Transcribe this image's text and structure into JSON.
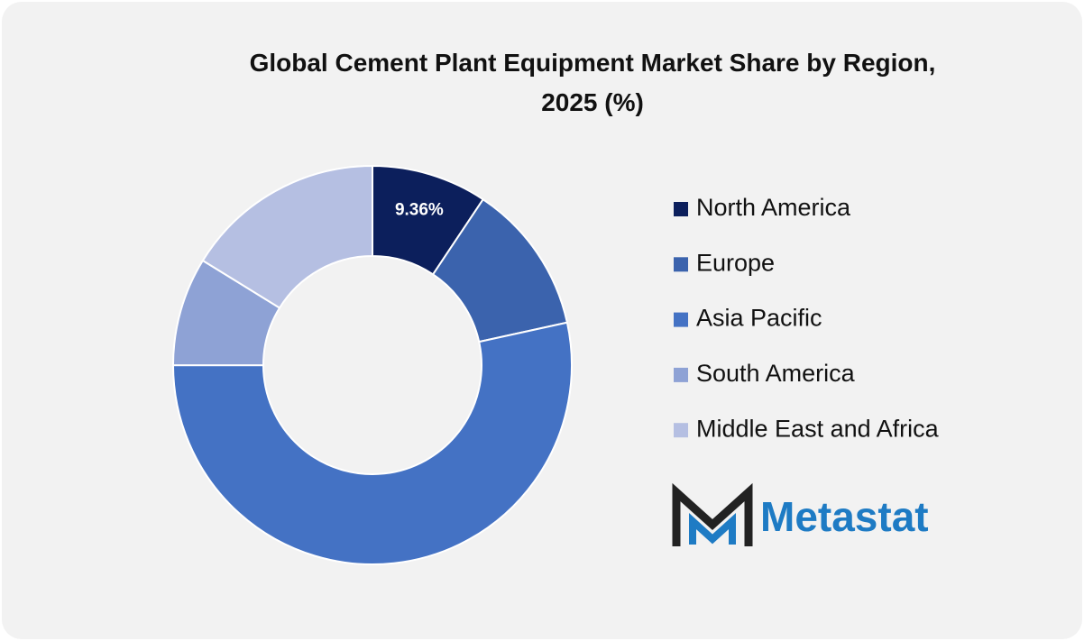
{
  "chart_data": {
    "type": "donut",
    "title": "Global Cement Plant Equipment Market Share by Region, 2025 (%)",
    "categories": [
      "North America",
      "Europe",
      "Asia Pacific",
      "South America",
      "Middle East and Africa"
    ],
    "values": [
      9.36,
      12.2,
      53.4,
      8.8,
      16.2
    ],
    "value_labels": [
      "9.36%",
      null,
      null,
      null,
      null
    ],
    "colors": [
      "#0c1f5c",
      "#3b63ad",
      "#4472c4",
      "#8ea2d5",
      "#b5bfe2"
    ],
    "legend": "right"
  },
  "logo": {
    "text": "Metastat"
  }
}
